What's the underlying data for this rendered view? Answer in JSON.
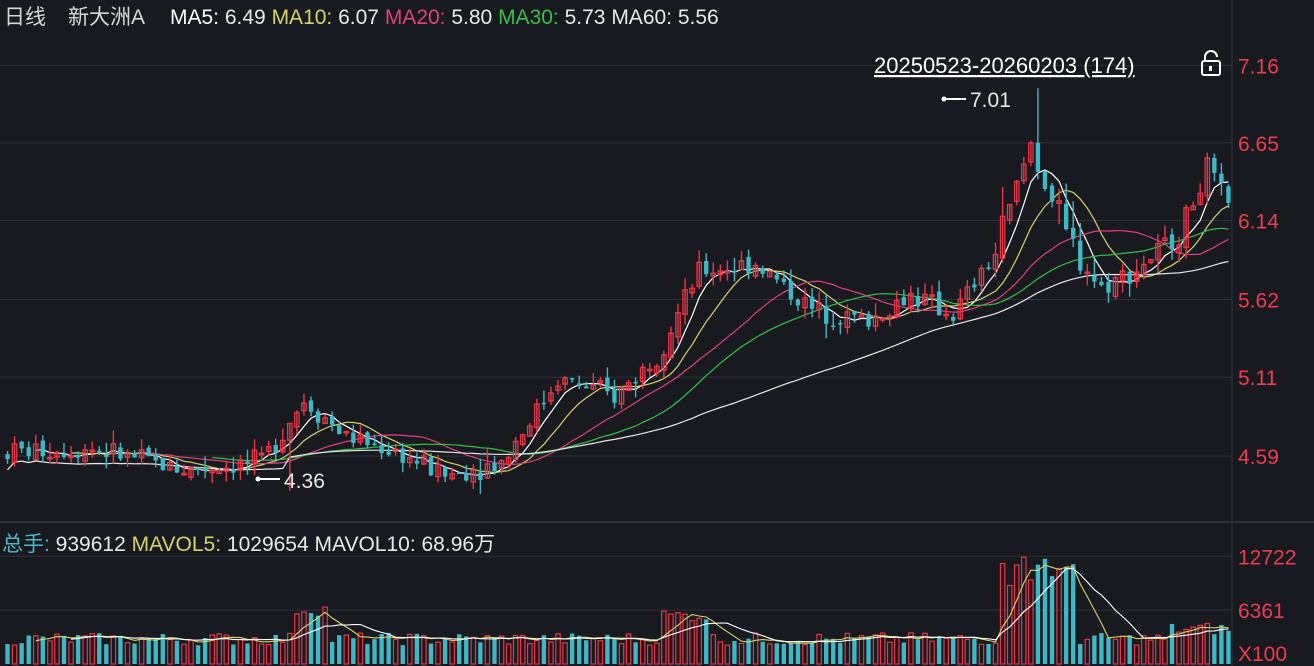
{
  "header": {
    "period": "日线",
    "stock": "新大洲A",
    "ma": [
      {
        "label": "MA5: ",
        "value": "6.49",
        "color": "#ffffff"
      },
      {
        "label": "MA10: ",
        "value": "6.07",
        "color": "#d4d46a"
      },
      {
        "label": "MA20: ",
        "value": "5.80",
        "color": "#e0407e"
      },
      {
        "label": "MA30: ",
        "value": "5.73",
        "color": "#34c04a"
      },
      {
        "label": "MA60: ",
        "value": "5.56",
        "color": "#e8e8e8"
      }
    ]
  },
  "range": {
    "label": "20250523-20260203 (174)"
  },
  "annotations": {
    "high": "7.01",
    "low": "4.36"
  },
  "volume_header": [
    {
      "label": "总手: ",
      "value": "939612",
      "color": "#4ab8c8"
    },
    {
      "label": "MAVOL5: ",
      "value": "1029654",
      "color": "#d4d46a"
    },
    {
      "label": "MAVOL10: ",
      "value": "68.96万",
      "color": "#e8e8e8"
    }
  ],
  "colors": {
    "up": "#e8364a",
    "down": "#3fb8c6",
    "grid": "#2e3138",
    "axis_text": "#ec3c52",
    "bg": "#181a1f"
  },
  "chart_data": {
    "type": "candlestick",
    "price_axis": [
      7.16,
      6.65,
      6.14,
      5.62,
      5.11,
      4.59
    ],
    "price_ylim": [
      4.17,
      7.34
    ],
    "volume_axis": [
      12722,
      6361
    ],
    "volume_unit": "X100",
    "volume_ylim": [
      0,
      13700
    ],
    "bars": 174,
    "high_value": 7.01,
    "low_value": 4.36
  }
}
